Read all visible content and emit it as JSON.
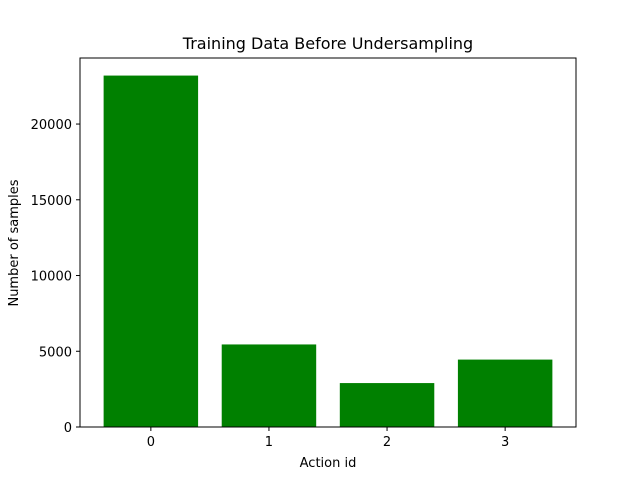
{
  "chart_data": {
    "type": "bar",
    "title": "Training Data Before Undersampling",
    "xlabel": "Action id",
    "ylabel": "Number of samples",
    "categories": [
      "0",
      "1",
      "2",
      "3"
    ],
    "values": [
      23200,
      5450,
      2900,
      4450
    ],
    "ylim": [
      0,
      24360
    ],
    "yticks": [
      0,
      5000,
      10000,
      15000,
      20000
    ],
    "yticks_labels": [
      "0",
      "5000",
      "10000",
      "15000",
      "20000"
    ],
    "bar_color": "#008000",
    "grid": false,
    "legend": "none"
  }
}
